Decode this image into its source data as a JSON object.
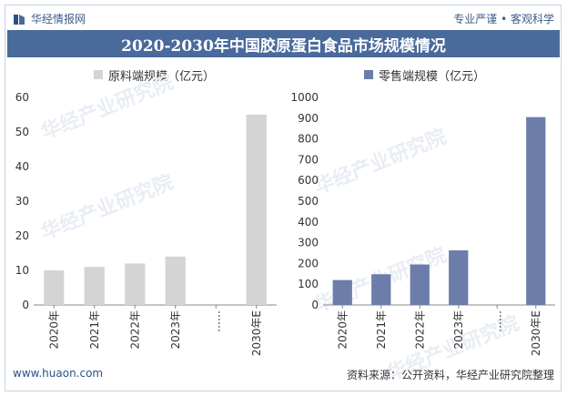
{
  "brand": {
    "name": "华经情报网",
    "tagline": "专业严谨 • 客观科学"
  },
  "title": "2020-2030年中国胶原蛋白食品市场规模情况",
  "footer": {
    "site": "www.huaon.com",
    "source": "资料来源：公开资料，华经产业研究院整理"
  },
  "watermark": "华经产业研究院",
  "colors": {
    "series1": "#d4d4d4",
    "series2": "#6b7da8",
    "title_bg": "#4a6a9c",
    "accent": "#2f4f86"
  },
  "chart_data": [
    {
      "type": "bar",
      "categories": [
        "2020年",
        "2021年",
        "2022年",
        "2023年",
        "……",
        "2030年E"
      ],
      "series": [
        {
          "name": "原料端规模（亿元）",
          "values": [
            10,
            11,
            12,
            14,
            null,
            55
          ]
        }
      ],
      "ylim": [
        0,
        60
      ],
      "yticks": [
        0,
        10,
        20,
        30,
        40,
        50,
        60
      ],
      "grid": false,
      "legend": "top-center"
    },
    {
      "type": "bar",
      "categories": [
        "2020年",
        "2021年",
        "2022年",
        "2023年",
        "……",
        "2030年E"
      ],
      "series": [
        {
          "name": "零售端规模（亿元）",
          "values": [
            120,
            148,
            195,
            263,
            null,
            905
          ]
        }
      ],
      "ylim": [
        0,
        1000
      ],
      "yticks": [
        0,
        100,
        200,
        300,
        400,
        500,
        600,
        700,
        800,
        900,
        1000
      ],
      "grid": false,
      "legend": "top-center"
    }
  ]
}
